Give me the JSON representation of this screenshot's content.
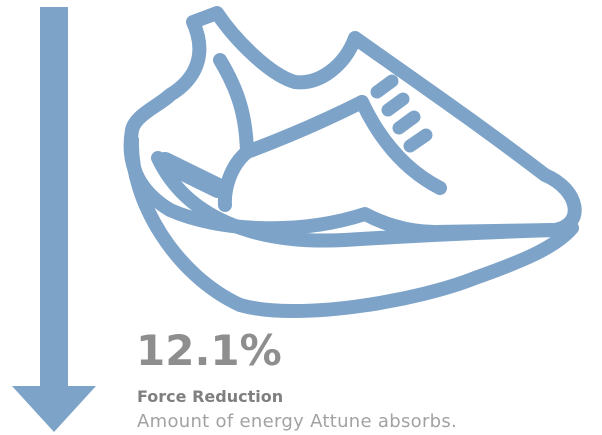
{
  "colors": {
    "icon": "#7da3c9",
    "value_text": "#8e8e8e",
    "label_text": "#7f7f7f",
    "desc_text": "#a2a2a2"
  },
  "icons": {
    "arrow": "down-arrow-icon",
    "shoe": "running-shoe-icon"
  },
  "stat": {
    "value": "12.1%",
    "label": "Force Reduction",
    "description": "Amount of energy Attune absorbs."
  }
}
